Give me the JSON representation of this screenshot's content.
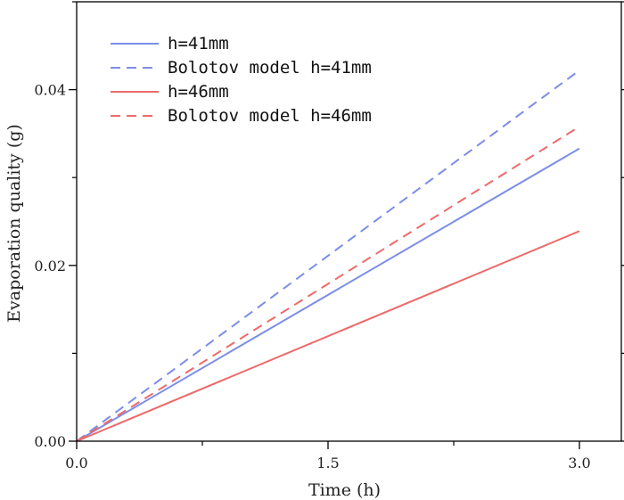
{
  "chart_data": {
    "type": "line",
    "title": "",
    "xlabel": "Time (h)",
    "ylabel": "Evaporation quality (g)",
    "xlim": [
      0,
      3.25
    ],
    "ylim": [
      0,
      0.05
    ],
    "xticks": [
      0,
      1.5,
      3
    ],
    "xtick_labels": [
      "0.0",
      "1.5",
      "3.0"
    ],
    "yticks": [
      0,
      0.02,
      0.04
    ],
    "ytick_labels": [
      "0.00",
      "0.02",
      "0.04"
    ],
    "grid": false,
    "legend_position": "top-left",
    "series": [
      {
        "name": "h=41mm",
        "color": "#7b8ee6",
        "dash": "solid",
        "x": [
          0,
          3.0
        ],
        "y": [
          0,
          0.0333
        ]
      },
      {
        "name": "Bolotov model h=41mm",
        "color": "#7b8ee6",
        "dash": "dashed",
        "x": [
          0,
          3.0
        ],
        "y": [
          0,
          0.0422
        ]
      },
      {
        "name": "h=46mm",
        "color": "#ee6a6a",
        "dash": "solid",
        "x": [
          0,
          3.0
        ],
        "y": [
          0,
          0.0239
        ]
      },
      {
        "name": "Bolotov model h=46mm",
        "color": "#ee6a6a",
        "dash": "dashed",
        "x": [
          0,
          3.0
        ],
        "y": [
          0,
          0.0358
        ]
      }
    ]
  }
}
